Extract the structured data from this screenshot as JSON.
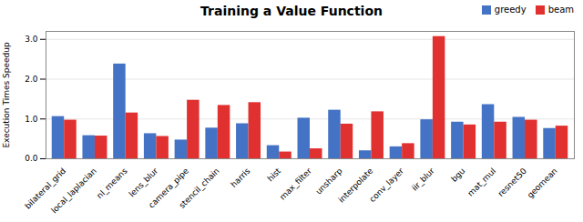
{
  "chart_data": {
    "type": "bar",
    "title": "Training a Value Function",
    "ylabel": "Execution Times Speedup",
    "categories": [
      "bilateral_grid",
      "local_laplacian",
      "nl_means",
      "lens_blur",
      "camera_pipe",
      "stencil_chain",
      "harris",
      "hist",
      "max_filter",
      "unsharp",
      "interpolate",
      "conv_layer",
      "iir_blur",
      "bgu",
      "mat_mul",
      "resnet50",
      "geomean"
    ],
    "series": [
      {
        "name": "greedy",
        "color": "#4472c4",
        "values": [
          1.06,
          0.58,
          2.38,
          0.63,
          0.47,
          0.77,
          0.88,
          0.33,
          1.02,
          1.22,
          0.2,
          0.3,
          0.98,
          0.92,
          1.36,
          1.04,
          0.76
        ]
      },
      {
        "name": "beam",
        "color": "#e03030",
        "values": [
          0.97,
          0.57,
          1.15,
          0.56,
          1.47,
          1.34,
          1.41,
          0.17,
          0.25,
          0.87,
          1.18,
          0.38,
          3.07,
          0.85,
          0.92,
          0.97,
          0.82
        ]
      }
    ],
    "ylim": [
      0.0,
      3.2
    ],
    "yticks": [
      {
        "value": 0,
        "label": "0.0"
      },
      {
        "value": 1,
        "label": "1.0"
      },
      {
        "value": 2,
        "label": "2.0"
      },
      {
        "value": 3,
        "label": "3.0"
      }
    ],
    "grid": true,
    "legend": "upper right"
  }
}
